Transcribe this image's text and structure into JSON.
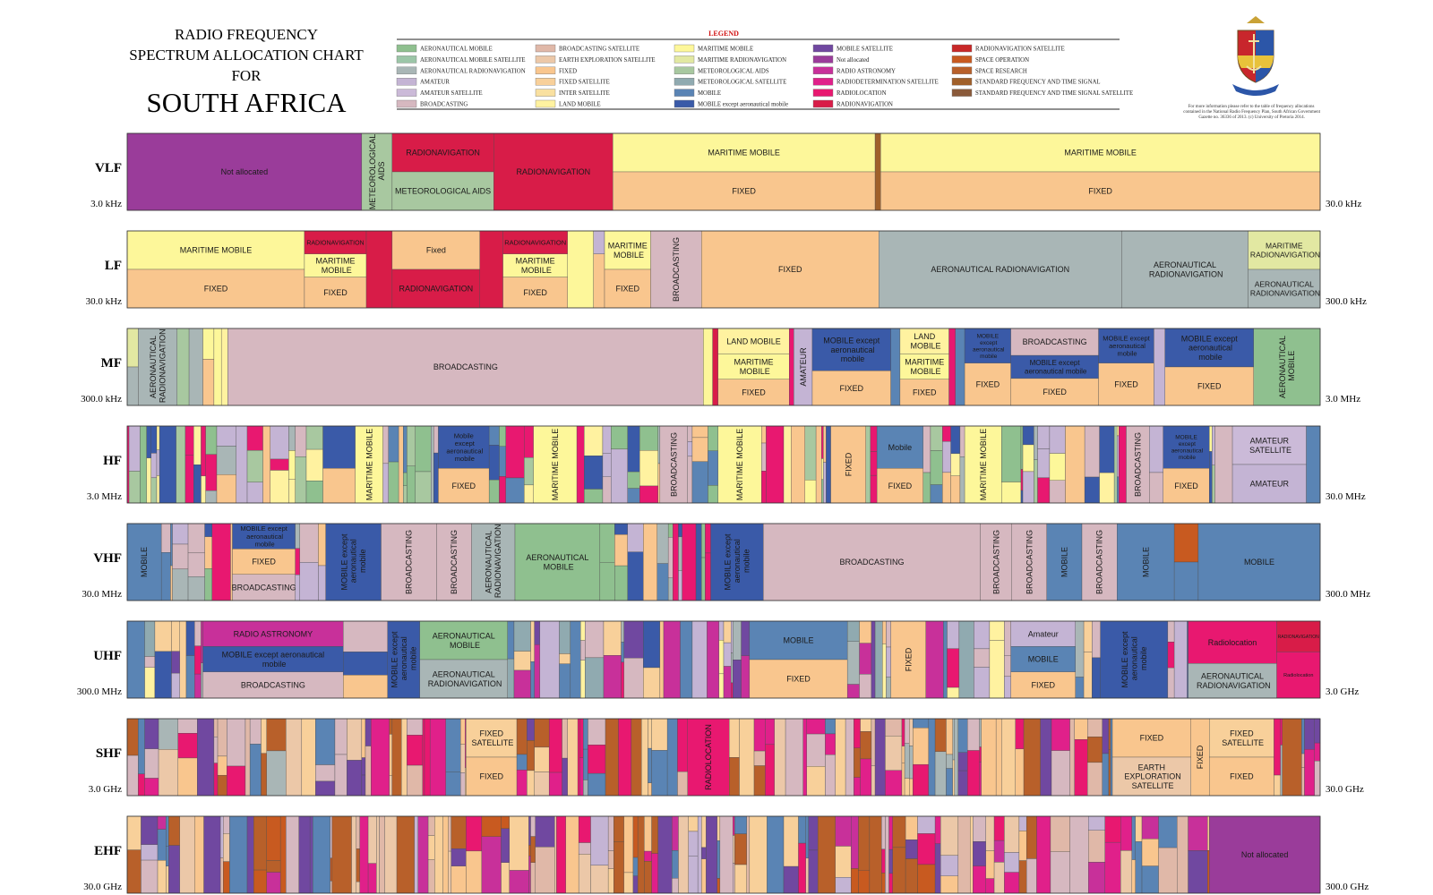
{
  "title": [
    "RADIO FREQUENCY",
    "SPECTRUM ALLOCATION CHART",
    "FOR",
    "SOUTH AFRICA"
  ],
  "legend": {
    "title": "LEGEND",
    "items": [
      {
        "name": "AERONAUTICAL MOBILE",
        "color": "#8fc08f"
      },
      {
        "name": "AERONAUTICAL MOBILE SATELLITE",
        "color": "#9cc6a8"
      },
      {
        "name": "AERONAUTICAL RADIONAVIGATION",
        "color": "#a9b6b6"
      },
      {
        "name": "AMATEUR",
        "color": "#c4b4d4"
      },
      {
        "name": "AMATEUR SATELLITE",
        "color": "#cbbad8"
      },
      {
        "name": "BROADCASTING",
        "color": "#d6b8c0"
      },
      {
        "name": "BROADCASTING SATELLITE",
        "color": "#e0b8a8"
      },
      {
        "name": "EARTH EXPLORATION SATELLITE",
        "color": "#ecc8a8"
      },
      {
        "name": "FIXED",
        "color": "#f9c68e"
      },
      {
        "name": "FIXED SATELLITE",
        "color": "#f8d09a"
      },
      {
        "name": "INTER SATELLITE",
        "color": "#f9e0a0"
      },
      {
        "name": "LAND MOBILE",
        "color": "#fff2a0"
      },
      {
        "name": "MARITIME MOBILE",
        "color": "#fdf79a"
      },
      {
        "name": "MARITIME RADIONAVIGATION",
        "color": "#e2e8a2"
      },
      {
        "name": "METEOROLOGICAL AIDS",
        "color": "#a8c8a0"
      },
      {
        "name": "METEOROLOGICAL SATELLITE",
        "color": "#90aab0"
      },
      {
        "name": "MOBILE",
        "color": "#5a84b4"
      },
      {
        "name": "MOBILE except aeronautical mobile",
        "color": "#3a5aa8"
      },
      {
        "name": "MOBILE SATELLITE",
        "color": "#7048a0"
      },
      {
        "name": "Not allocated",
        "color": "#9a3c9a"
      },
      {
        "name": "RADIO ASTRONOMY",
        "color": "#c8309a"
      },
      {
        "name": "RADIODETERMINATION SATELLITE",
        "color": "#e0208a"
      },
      {
        "name": "RADIOLOCATION",
        "color": "#e81870"
      },
      {
        "name": "RADIONAVIGATION",
        "color": "#d81c48"
      },
      {
        "name": "RADIONAVIGATION SATELLITE",
        "color": "#c82828"
      },
      {
        "name": "SPACE OPERATION",
        "color": "#c85a20"
      },
      {
        "name": "SPACE RESEARCH",
        "color": "#b8602a"
      },
      {
        "name": "STANDARD FREQUENCY AND TIME SIGNAL",
        "color": "#a0602a"
      },
      {
        "name": "STANDARD FREQUENCY AND TIME SIGNAL SATELLITE",
        "color": "#8a5a3a"
      }
    ]
  },
  "note": "For more information please refer to the table of frequency allocations contained in the National Radio Frequency Plan, South African Government Gazette no. 36336 of 2013. (c) University of Pretoria 2014.",
  "bands": [
    {
      "name": "VLF",
      "start": "3.0 kHz",
      "end": "30.0 kHz",
      "labels": [
        "Not allocated",
        "METEOROLOGICAL AIDS",
        "RADIONAVIGATION",
        "METEOROLOGICAL AIDS",
        "RADIONAVIGATION",
        "MARITIME MOBILE",
        "FIXED",
        "MARITIME MOBILE",
        "FIXED"
      ]
    },
    {
      "name": "LF",
      "start": "30.0 kHz",
      "end": "300.0 kHz",
      "labels": [
        "MARITIME MOBILE",
        "FIXED",
        "RADIONAVIGATION",
        "MARITIME MOBILE",
        "FIXED",
        "Fixed",
        "RADIONAVIGATION",
        "RADIONAVIGATION",
        "MARITIME MOBILE",
        "FIXED",
        "MARITIME MOBILE",
        "FIXED",
        "BROADCASTING",
        "FIXED",
        "AERONAUTICAL RADIONAVIGATION",
        "AERONAUTICAL RADIONAVIGATION",
        "MARITIME RADIONAVIGATION",
        "AERONAUTICAL RADIONAVIGATION"
      ]
    },
    {
      "name": "MF",
      "start": "300.0 kHz",
      "end": "3.0 MHz",
      "labels": [
        "AERONAUTICAL RADIONAVIGATION",
        "BROADCASTING",
        "LAND MOBILE",
        "MARITIME MOBILE",
        "FIXED",
        "AMATEUR",
        "MOBILE except aeronautical mobile",
        "FIXED",
        "LAND MOBILE",
        "MARITIME MOBILE",
        "FIXED",
        "MOBILE except aeronautical mobile",
        "FIXED",
        "BROADCASTING",
        "MOBILE except aeronautical mobile",
        "FIXED",
        "MOBILE except aeronautical mobile",
        "FIXED",
        "MOBILE except aeronautical mobile",
        "FIXED",
        "AERONAUTICAL MOBILE"
      ]
    },
    {
      "name": "HF",
      "start": "3.0 MHz",
      "end": "30.0 MHz",
      "labels": [
        "MARITIME MOBILE",
        "Mobile except aeronautical mobile",
        "FIXED",
        "MARITIME MOBILE",
        "BROADCASTING",
        "MARITIME MOBILE",
        "FIXED",
        "Mobile",
        "FIXED",
        "MARITIME MOBILE",
        "BROADCASTING",
        "MOBILE except aeronautical mobile",
        "FIXED",
        "AMATEUR SATELLITE",
        "AMATEUR"
      ]
    },
    {
      "name": "VHF",
      "start": "30.0 MHz",
      "end": "300.0 MHz",
      "labels": [
        "MOBILE",
        "MOBILE except aeronautical mobile",
        "FIXED",
        "BROADCASTING",
        "MOBILE except aeronautical mobile",
        "BROADCASTING",
        "BROADCASTING",
        "AERONAUTICAL RADIONAVIGATION",
        "AERONAUTICAL MOBILE",
        "MOBILE except aeronautical mobile",
        "BROADCASTING",
        "BROADCASTING",
        "BROADCASTING",
        "MOBILE",
        "BROADCASTING",
        "MOBILE",
        "MOBILE"
      ]
    },
    {
      "name": "UHF",
      "start": "300.0 MHz",
      "end": "3.0 GHz",
      "labels": [
        "RADIO ASTRONOMY",
        "MOBILE except aeronautical mobile",
        "BROADCASTING",
        "MOBILE except aeronautical mobile",
        "AERONAUTICAL MOBILE",
        "AERONAUTICAL RADIONAVIGATION",
        "MOBILE",
        "FIXED",
        "FIXED",
        "Amateur",
        "MOBILE",
        "FIXED",
        "MOBILE except aeronautical mobile",
        "Radiolocation",
        "AERONAUTICAL RADIONAVIGATION",
        "RADIONAVIGATION",
        "Radiolocation"
      ]
    },
    {
      "name": "SHF",
      "start": "3.0 GHz",
      "end": "30.0 GHz",
      "labels": [
        "FIXED SATELLITE",
        "FIXED",
        "RADIOLOCATION",
        "FIXED",
        "EARTH EXPLORATION SATELLITE",
        "FIXED",
        "FIXED SATELLITE",
        "FIXED"
      ]
    },
    {
      "name": "EHF",
      "start": "30.0 GHz",
      "end": "300.0 GHz",
      "labels": [
        "Not allocated"
      ]
    }
  ]
}
